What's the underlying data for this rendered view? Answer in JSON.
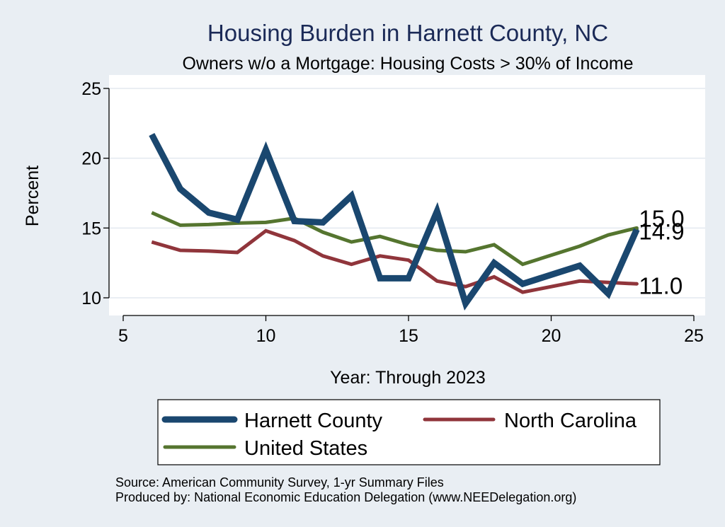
{
  "chart_data": {
    "type": "line",
    "title": "Housing Burden in Harnett County, NC",
    "subtitle": "Owners w/o a Mortgage: Housing Costs > 30% of Income",
    "xlabel": "Year: Through 2023",
    "ylabel": "Percent",
    "xlim": [
      5,
      25
    ],
    "ylim": [
      10,
      25
    ],
    "xticks": [
      5,
      10,
      15,
      20,
      25
    ],
    "yticks": [
      10,
      15,
      20,
      25
    ],
    "grid": true,
    "series": [
      {
        "name": "Harnett County",
        "color": "#1a476f",
        "x": [
          6,
          7,
          8,
          9,
          10,
          11,
          12,
          13,
          14,
          15,
          16,
          17,
          18,
          19,
          21,
          22,
          23
        ],
        "y": [
          21.7,
          17.8,
          16.1,
          15.6,
          20.6,
          15.5,
          15.4,
          17.3,
          11.4,
          11.4,
          16.2,
          9.6,
          12.5,
          11.0,
          12.3,
          10.3,
          14.9
        ],
        "end_label": "14.9"
      },
      {
        "name": "North Carolina",
        "color": "#90353b",
        "x": [
          6,
          7,
          8,
          9,
          10,
          11,
          12,
          13,
          14,
          15,
          16,
          17,
          18,
          19,
          21,
          22,
          23
        ],
        "y": [
          14.0,
          13.4,
          13.35,
          13.25,
          14.8,
          14.1,
          13.0,
          12.4,
          13.0,
          12.7,
          11.2,
          10.8,
          11.5,
          10.4,
          11.2,
          11.1,
          11.0
        ],
        "end_label": "11.0"
      },
      {
        "name": "United States",
        "color": "#55752f",
        "x": [
          6,
          7,
          8,
          9,
          10,
          11,
          12,
          13,
          14,
          15,
          16,
          17,
          18,
          19,
          21,
          22,
          23
        ],
        "y": [
          16.1,
          15.2,
          15.25,
          15.35,
          15.4,
          15.7,
          14.7,
          14.0,
          14.4,
          13.8,
          13.4,
          13.3,
          13.8,
          12.4,
          13.7,
          14.5,
          15.0
        ],
        "end_label": "15.0"
      }
    ],
    "legend": {
      "placement": "bottom",
      "entries": [
        "Harnett County",
        "North Carolina",
        "United States"
      ]
    },
    "source": "Source: American Community Survey, 1-yr Summary Files",
    "producer": "Produced by: National Economic Education Delegation (www.NEEDelegation.org)"
  }
}
